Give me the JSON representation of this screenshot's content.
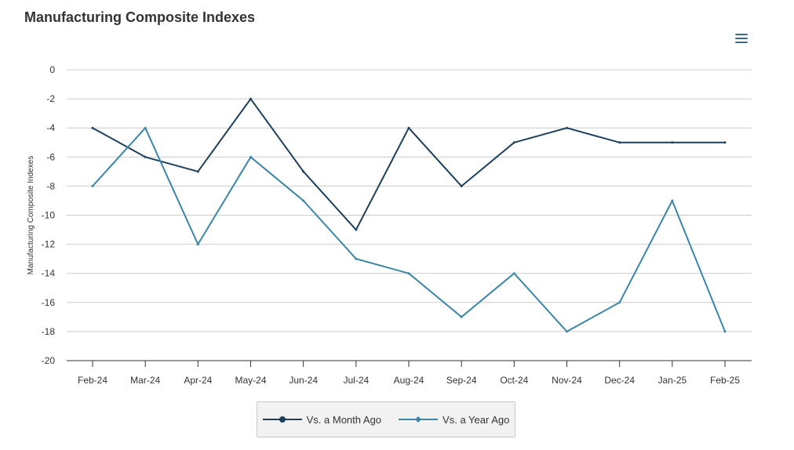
{
  "chart_data": {
    "type": "line",
    "title": "Manufacturing Composite Indexes",
    "ylabel": "Manufacturing Composite Indexes",
    "xlabel": "",
    "ylim": [
      -20,
      0
    ],
    "yticks": [
      0,
      -2,
      -4,
      -6,
      -8,
      -10,
      -12,
      -14,
      -16,
      -18,
      -20
    ],
    "categories": [
      "Feb-24",
      "Mar-24",
      "Apr-24",
      "May-24",
      "Jun-24",
      "Jul-24",
      "Aug-24",
      "Sep-24",
      "Oct-24",
      "Nov-24",
      "Dec-24",
      "Jan-25",
      "Feb-25"
    ],
    "grid": true,
    "legend_position": "bottom-center",
    "series": [
      {
        "name": "Vs. a Month Ago",
        "color": "#1d3f5e",
        "marker": "circle",
        "values": [
          -4,
          -6,
          -7,
          -2,
          -7,
          -11,
          -4,
          -8,
          -5,
          -4,
          -5,
          -5,
          -5
        ]
      },
      {
        "name": "Vs. a Year Ago",
        "color": "#3b86a8",
        "marker": "diamond",
        "values": [
          -8,
          -4,
          -12,
          -6,
          -9,
          -13,
          -14,
          -17,
          -14,
          -18,
          -16,
          -9,
          -18
        ]
      }
    ]
  }
}
